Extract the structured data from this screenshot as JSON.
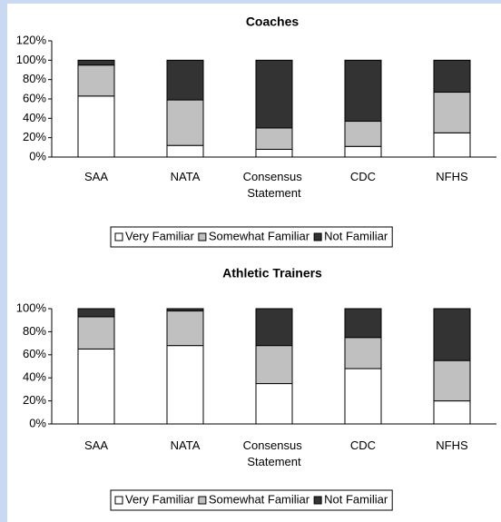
{
  "chart_data": [
    {
      "type": "bar",
      "stacked": true,
      "title": "Coaches",
      "categories": [
        "SAA",
        "NATA",
        "Consensus Statement",
        "CDC",
        "NFHS"
      ],
      "series": [
        {
          "name": "Very Familiar",
          "color": "#ffffff",
          "values": [
            63,
            12,
            8,
            11,
            25
          ]
        },
        {
          "name": "Somewhat Familiar",
          "color": "#c0c0c0",
          "values": [
            32,
            47,
            22,
            26,
            42
          ]
        },
        {
          "name": "Not Familiar",
          "color": "#333333",
          "values": [
            5,
            41,
            70,
            63,
            33
          ]
        }
      ],
      "ylim": [
        0,
        120
      ],
      "yticks": [
        {
          "value": 0,
          "label": "0%"
        },
        {
          "value": 20,
          "label": "20%"
        },
        {
          "value": 40,
          "label": "40%"
        },
        {
          "value": 60,
          "label": "60%"
        },
        {
          "value": 80,
          "label": "80%"
        },
        {
          "value": 100,
          "label": "100%"
        },
        {
          "value": 120,
          "label": "120%"
        }
      ],
      "legend": "bottom"
    },
    {
      "type": "bar",
      "stacked": true,
      "title": "Athletic Trainers",
      "categories": [
        "SAA",
        "NATA",
        "Consensus Statement",
        "CDC",
        "NFHS"
      ],
      "series": [
        {
          "name": "Very Familiar",
          "color": "#ffffff",
          "values": [
            65,
            68,
            35,
            48,
            20
          ]
        },
        {
          "name": "Somewhat Familiar",
          "color": "#c0c0c0",
          "values": [
            28,
            30,
            33,
            27,
            35
          ]
        },
        {
          "name": "Not Familiar",
          "color": "#333333",
          "values": [
            7,
            2,
            32,
            25,
            45
          ]
        }
      ],
      "ylim": [
        0,
        100
      ],
      "yticks": [
        {
          "value": 0,
          "label": "0%"
        },
        {
          "value": 20,
          "label": "20%"
        },
        {
          "value": 40,
          "label": "40%"
        },
        {
          "value": 60,
          "label": "60%"
        },
        {
          "value": 80,
          "label": "80%"
        },
        {
          "value": 100,
          "label": "100%"
        }
      ],
      "legend": "bottom"
    }
  ]
}
